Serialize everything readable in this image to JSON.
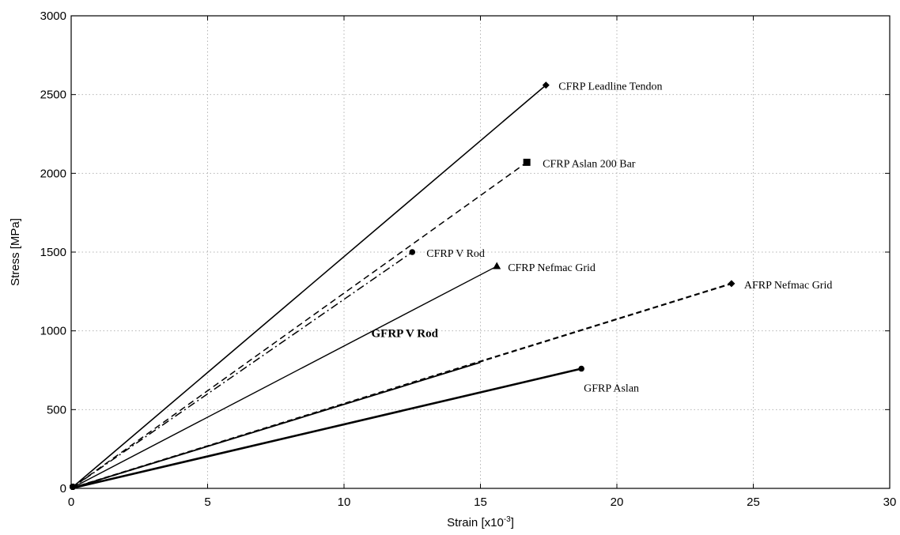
{
  "chart_data": {
    "type": "line",
    "xlabel": "Strain [x10",
    "xlabel_superscript": "-3",
    "xlabel_suffix": "]",
    "ylabel": "Stress [MPa]",
    "xlim": [
      0,
      30
    ],
    "ylim": [
      0,
      3000
    ],
    "xticks": [
      "0",
      "5",
      "10",
      "15",
      "20",
      "25",
      "30"
    ],
    "yticks": [
      "0",
      "500",
      "1000",
      "1500",
      "2000",
      "2500",
      "3000"
    ],
    "grid": true,
    "series": [
      {
        "name": "CFRP Leadline Tendon",
        "x": [
          0,
          17.4
        ],
        "y": [
          0,
          2560
        ],
        "line": "solid",
        "width": 1.6,
        "marker": "diamond",
        "bold": false
      },
      {
        "name": "CFRP Aslan 200 Bar",
        "x": [
          0,
          16.7
        ],
        "y": [
          0,
          2070
        ],
        "line": "dashed",
        "width": 1.5,
        "marker": "square",
        "bold": false
      },
      {
        "name": "CFRP V Rod",
        "x": [
          0,
          12.5
        ],
        "y": [
          0,
          1500
        ],
        "line": "dashdot",
        "width": 1.5,
        "marker": "dot",
        "bold": false
      },
      {
        "name": "CFRP Nefmac Grid",
        "x": [
          0,
          15.6
        ],
        "y": [
          0,
          1410
        ],
        "line": "solid",
        "width": 1.4,
        "marker": "triangle",
        "bold": false
      },
      {
        "name": "AFRP Nefmac Grid",
        "x": [
          0,
          24.2
        ],
        "y": [
          0,
          1300
        ],
        "line": "dashed-thick",
        "width": 2.2,
        "marker": "diamond",
        "bold": false
      },
      {
        "name": "GFRP V Rod",
        "x": [
          0,
          15.0
        ],
        "y": [
          0,
          800
        ],
        "line": "solid",
        "width": 1.8,
        "marker": "none",
        "bold": true
      },
      {
        "name": "GFRP Aslan",
        "x": [
          0,
          18.7
        ],
        "y": [
          0,
          760
        ],
        "line": "solid-thick",
        "width": 2.6,
        "marker": "dot",
        "bold": false
      }
    ]
  }
}
